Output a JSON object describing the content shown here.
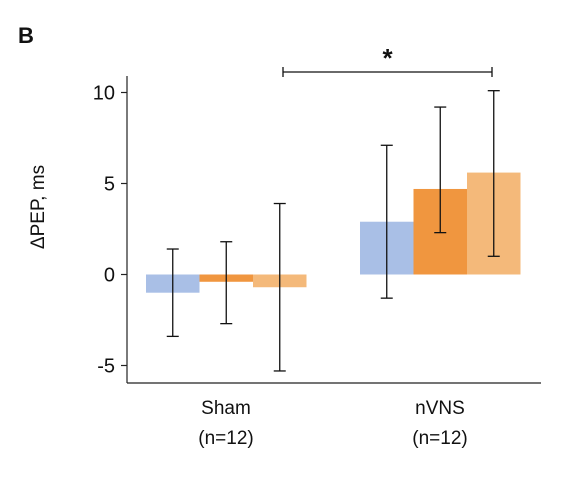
{
  "panel_label": "B",
  "chart_data": {
    "type": "bar",
    "title": "",
    "ylabel": "ΔPEP, ms",
    "xlabel": "",
    "ylim": [
      -6,
      10.5
    ],
    "yticks": [
      -5,
      0,
      5,
      10
    ],
    "ytick_labels": [
      "-5",
      "0",
      "5",
      "10"
    ],
    "grid": false,
    "legend": "none",
    "categories": [
      {
        "name": "Sham",
        "n_label": "(n=12)"
      },
      {
        "name": "nVNS",
        "n_label": "(n=12)"
      }
    ],
    "series": [
      {
        "color": "#a9bfe6",
        "values": [
          -1.0,
          2.9
        ],
        "error_low": [
          -3.4,
          -1.3
        ],
        "error_high": [
          1.4,
          7.1
        ]
      },
      {
        "color": "#f0963f",
        "values": [
          -0.4,
          4.7
        ],
        "error_low": [
          -2.7,
          2.3
        ],
        "error_high": [
          1.8,
          9.2
        ]
      },
      {
        "color": "#f4b97a",
        "values": [
          -0.7,
          5.6
        ],
        "error_low": [
          -5.3,
          1.0
        ],
        "error_high": [
          3.9,
          10.1
        ]
      }
    ],
    "significance": {
      "label": "*"
    }
  }
}
